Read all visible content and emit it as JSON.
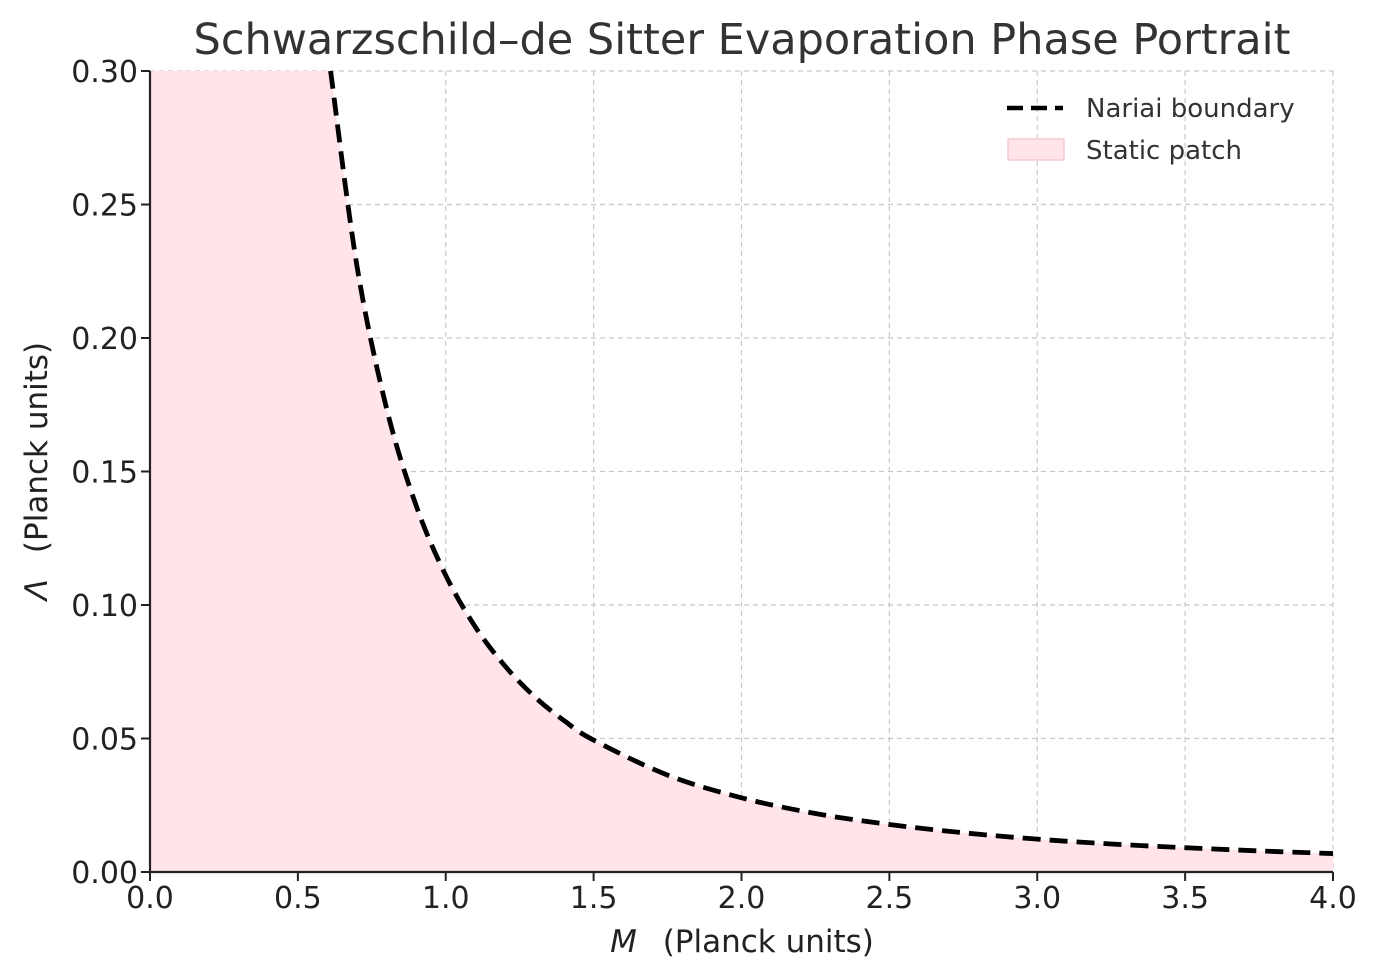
{
  "chart_data": {
    "type": "line",
    "title": "Schwarzschild–de Sitter Evaporation Phase Portrait",
    "xlabel_symbol": "M",
    "xlabel_units": "(Planck units)",
    "ylabel_symbol": "Λ",
    "ylabel_units": "(Planck units)",
    "xlim": [
      0.0,
      4.0
    ],
    "ylim": [
      0.0,
      0.3
    ],
    "x_ticks": [
      "0.0",
      "0.5",
      "1.0",
      "1.5",
      "2.0",
      "2.5",
      "3.0",
      "3.5",
      "4.0"
    ],
    "y_ticks": [
      "0.00",
      "0.05",
      "0.10",
      "0.15",
      "0.20",
      "0.25",
      "0.30"
    ],
    "grid": true,
    "legend_position": "top-right",
    "series": [
      {
        "name": "Nariai boundary",
        "style": "dashed",
        "color": "#000000",
        "x": [
          0.6,
          0.7,
          0.8,
          0.9,
          1.0,
          1.1,
          1.2,
          1.3,
          1.4,
          1.5,
          1.75,
          2.0,
          2.25,
          2.5,
          2.75,
          3.0,
          3.25,
          3.5,
          3.75,
          4.0
        ],
        "y": [
          0.3087,
          0.2268,
          0.1736,
          0.1372,
          0.1111,
          0.0918,
          0.0772,
          0.0657,
          0.0567,
          0.0494,
          0.0363,
          0.0278,
          0.0219,
          0.0178,
          0.0147,
          0.0123,
          0.0105,
          0.0091,
          0.0079,
          0.0069
        ]
      }
    ],
    "fill": {
      "name": "Static patch",
      "color": "#ffe4ea",
      "edge_color": "#f7c9d3",
      "region": "below Nariai boundary"
    }
  }
}
